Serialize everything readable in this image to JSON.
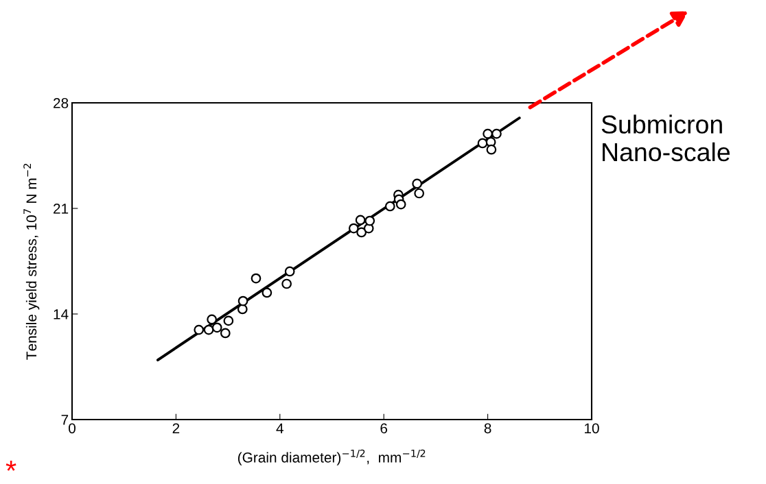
{
  "chart_data": {
    "type": "scatter",
    "xlabel": "(Grain diameter)$^{−1/2}$,  mm$^{−1/2}$",
    "ylabel": "Tensile yield stress, 10$^{7}$ N m$^{−2}$",
    "xlim": [
      0,
      10
    ],
    "xticks": [
      0,
      2,
      4,
      6,
      8,
      10
    ],
    "ylim": [
      7,
      28
    ],
    "yticks": [
      7,
      14,
      21,
      28
    ],
    "grid": false,
    "legend": false,
    "series": [
      {
        "marker": "circle",
        "color": "#000000",
        "x": [
          2.44,
          2.63,
          2.69,
          2.79,
          2.95,
          3.01,
          3.28,
          3.29,
          3.54,
          3.75,
          4.13,
          4.19,
          5.42,
          5.55,
          5.57,
          5.71,
          5.73,
          6.12,
          6.28,
          6.29,
          6.33,
          6.64,
          6.68,
          7.9,
          8.0,
          8.06,
          8.07,
          8.17
        ],
        "values": [
          12.95,
          12.95,
          13.64,
          13.1,
          12.73,
          13.55,
          14.32,
          14.86,
          16.36,
          15.41,
          16.0,
          16.82,
          19.68,
          20.23,
          19.41,
          19.68,
          20.18,
          21.14,
          21.9,
          21.6,
          21.27,
          22.64,
          22.0,
          25.32,
          25.95,
          25.4,
          24.9,
          25.95
        ]
      },
      {
        "type": "line",
        "color": "#000000",
        "x": [
          1.65,
          8.61
        ],
        "values": [
          10.95,
          27.0
        ]
      }
    ],
    "annotations": [
      "Submicron\nNano-scale",
      "*"
    ]
  }
}
